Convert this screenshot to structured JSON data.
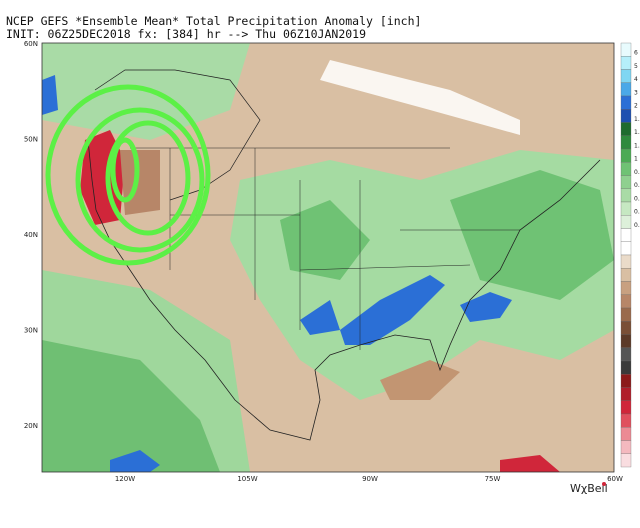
{
  "header": {
    "line1": "NCEP GEFS *Ensemble Mean* Total Precipitation Anomaly [inch]",
    "line2": "INIT: 06Z25DEC2018 fx: [384] hr --> Thu 06Z10JAN2019"
  },
  "map": {
    "lat_labels": [
      "60N",
      "50N",
      "40N",
      "30N",
      "20N"
    ],
    "lon_labels": [
      "120W",
      "105W",
      "90W",
      "75W",
      "60W"
    ]
  },
  "colorbar": {
    "labels": [
      "6",
      "5",
      "4",
      "3",
      "2",
      "1.",
      "1.",
      "1.",
      "1",
      "0.",
      "0.",
      "0.",
      "0.",
      "0."
    ]
  },
  "watermark": "WχBell"
}
